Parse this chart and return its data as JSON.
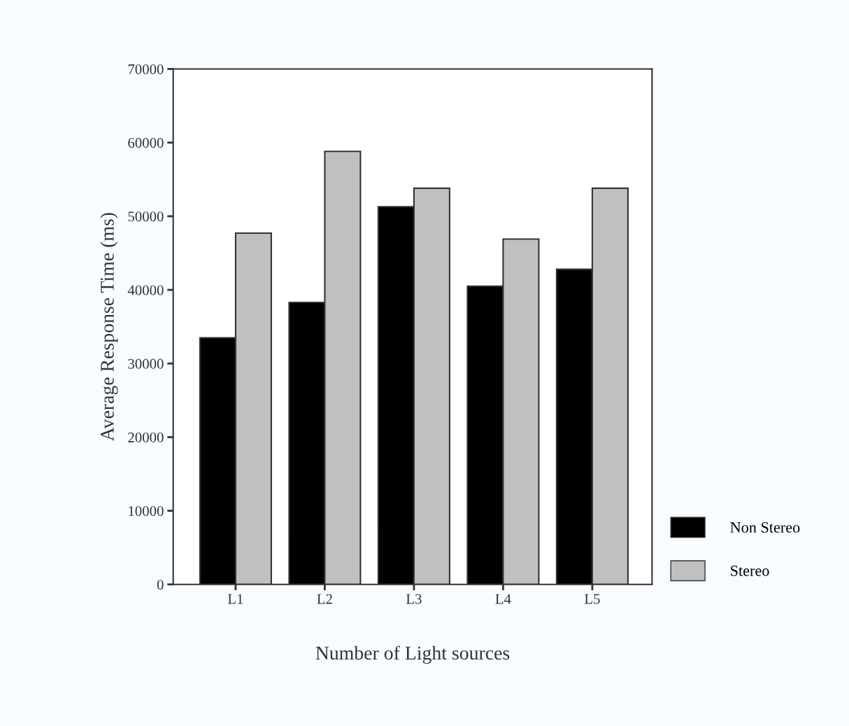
{
  "chart_data": {
    "type": "bar",
    "xlabel": "Number of Light sources",
    "ylabel": "Average Response Time (ms)",
    "categories": [
      "L1",
      "L2",
      "L3",
      "L4",
      "L5"
    ],
    "series": [
      {
        "name": "Non Stereo",
        "color": "#000000",
        "values": [
          33500,
          38300,
          51300,
          40500,
          42800
        ]
      },
      {
        "name": "Stereo",
        "color": "#c0c0c0",
        "values": [
          47700,
          58800,
          53800,
          46900,
          53800
        ]
      }
    ],
    "ylim": [
      0,
      70000
    ],
    "yticks": [
      0,
      10000,
      20000,
      30000,
      40000,
      50000,
      60000,
      70000
    ],
    "grid": false,
    "legend": "bottom right"
  }
}
